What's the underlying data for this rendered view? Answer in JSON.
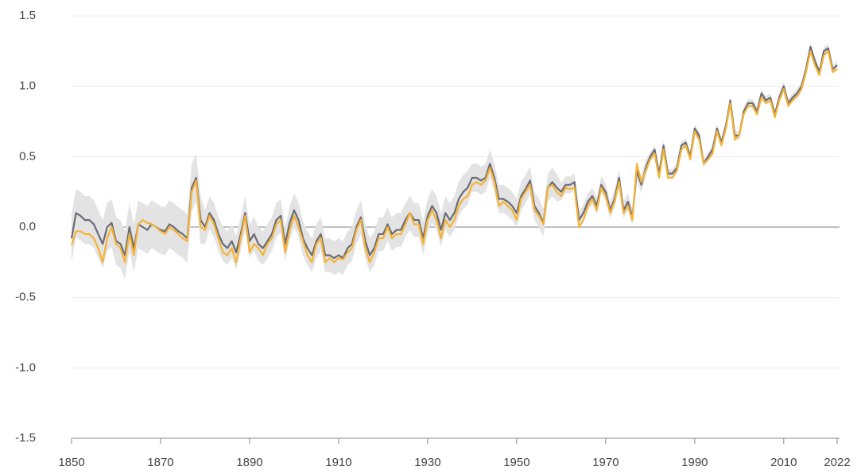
{
  "chart_data": {
    "type": "line",
    "x": [
      1850,
      1851,
      1852,
      1853,
      1854,
      1855,
      1856,
      1857,
      1858,
      1859,
      1860,
      1861,
      1862,
      1863,
      1864,
      1865,
      1866,
      1867,
      1868,
      1869,
      1870,
      1871,
      1872,
      1873,
      1874,
      1875,
      1876,
      1877,
      1878,
      1879,
      1880,
      1881,
      1882,
      1883,
      1884,
      1885,
      1886,
      1887,
      1888,
      1889,
      1890,
      1891,
      1892,
      1893,
      1894,
      1895,
      1896,
      1897,
      1898,
      1899,
      1900,
      1901,
      1902,
      1903,
      1904,
      1905,
      1906,
      1907,
      1908,
      1909,
      1910,
      1911,
      1912,
      1913,
      1914,
      1915,
      1916,
      1917,
      1918,
      1919,
      1920,
      1921,
      1922,
      1923,
      1924,
      1925,
      1926,
      1927,
      1928,
      1929,
      1930,
      1931,
      1932,
      1933,
      1934,
      1935,
      1936,
      1937,
      1938,
      1939,
      1940,
      1941,
      1942,
      1943,
      1944,
      1945,
      1946,
      1947,
      1948,
      1949,
      1950,
      1951,
      1952,
      1953,
      1954,
      1955,
      1956,
      1957,
      1958,
      1959,
      1960,
      1961,
      1962,
      1963,
      1964,
      1965,
      1966,
      1967,
      1968,
      1969,
      1970,
      1971,
      1972,
      1973,
      1974,
      1975,
      1976,
      1977,
      1978,
      1979,
      1980,
      1981,
      1982,
      1983,
      1984,
      1985,
      1986,
      1987,
      1988,
      1989,
      1990,
      1991,
      1992,
      1993,
      1994,
      1995,
      1996,
      1997,
      1998,
      1999,
      2000,
      2001,
      2002,
      2003,
      2004,
      2005,
      2006,
      2007,
      2008,
      2009,
      2010,
      2011,
      2012,
      2013,
      2014,
      2015,
      2016,
      2017,
      2018,
      2019,
      2020,
      2021,
      2022
    ],
    "series": [
      {
        "color": "#6b6b76",
        "band_color": "#e3e3e3",
        "values": [
          -0.08,
          0.1,
          0.08,
          0.05,
          0.05,
          0.02,
          -0.05,
          -0.12,
          0.0,
          0.03,
          -0.1,
          -0.12,
          -0.2,
          0.0,
          -0.15,
          0.02,
          0.0,
          -0.02,
          0.02,
          0.0,
          -0.02,
          -0.03,
          0.02,
          0.0,
          -0.03,
          -0.05,
          -0.08,
          0.28,
          0.35,
          0.05,
          0.0,
          0.1,
          0.05,
          -0.05,
          -0.12,
          -0.15,
          -0.1,
          -0.18,
          -0.05,
          0.1,
          -0.1,
          -0.05,
          -0.12,
          -0.15,
          -0.1,
          -0.05,
          0.05,
          0.08,
          -0.12,
          0.03,
          0.12,
          0.05,
          -0.08,
          -0.15,
          -0.2,
          -0.1,
          -0.05,
          -0.2,
          -0.2,
          -0.22,
          -0.2,
          -0.22,
          -0.15,
          -0.12,
          0.0,
          0.07,
          -0.1,
          -0.2,
          -0.15,
          -0.05,
          -0.05,
          0.02,
          -0.05,
          -0.02,
          -0.02,
          0.05,
          0.1,
          0.05,
          0.05,
          -0.08,
          0.08,
          0.15,
          0.1,
          -0.02,
          0.1,
          0.05,
          0.1,
          0.2,
          0.25,
          0.28,
          0.35,
          0.35,
          0.33,
          0.35,
          0.45,
          0.35,
          0.2,
          0.2,
          0.18,
          0.15,
          0.1,
          0.22,
          0.27,
          0.33,
          0.15,
          0.1,
          0.03,
          0.28,
          0.32,
          0.28,
          0.25,
          0.3,
          0.3,
          0.32,
          0.05,
          0.1,
          0.18,
          0.22,
          0.15,
          0.3,
          0.25,
          0.12,
          0.2,
          0.35,
          0.12,
          0.18,
          0.07,
          0.4,
          0.3,
          0.42,
          0.5,
          0.55,
          0.38,
          0.58,
          0.38,
          0.38,
          0.42,
          0.58,
          0.6,
          0.5,
          0.7,
          0.65,
          0.45,
          0.5,
          0.55,
          0.7,
          0.6,
          0.72,
          0.9,
          0.65,
          0.65,
          0.82,
          0.88,
          0.88,
          0.82,
          0.95,
          0.9,
          0.92,
          0.8,
          0.92,
          1.0,
          0.88,
          0.92,
          0.95,
          1.0,
          1.12,
          1.28,
          1.18,
          1.1,
          1.25,
          1.27,
          1.12,
          1.15
        ],
        "uncertainty": [
          0.17,
          0.17,
          0.17,
          0.17,
          0.17,
          0.17,
          0.17,
          0.17,
          0.17,
          0.17,
          0.17,
          0.17,
          0.17,
          0.17,
          0.17,
          0.17,
          0.17,
          0.17,
          0.17,
          0.17,
          0.17,
          0.17,
          0.17,
          0.17,
          0.17,
          0.17,
          0.17,
          0.17,
          0.17,
          0.17,
          0.12,
          0.12,
          0.12,
          0.12,
          0.12,
          0.12,
          0.12,
          0.12,
          0.12,
          0.12,
          0.12,
          0.12,
          0.12,
          0.12,
          0.12,
          0.12,
          0.12,
          0.12,
          0.12,
          0.12,
          0.12,
          0.12,
          0.12,
          0.12,
          0.12,
          0.12,
          0.12,
          0.12,
          0.12,
          0.12,
          0.12,
          0.12,
          0.12,
          0.12,
          0.12,
          0.12,
          0.12,
          0.12,
          0.12,
          0.12,
          0.12,
          0.12,
          0.12,
          0.12,
          0.12,
          0.12,
          0.12,
          0.12,
          0.12,
          0.12,
          0.12,
          0.12,
          0.12,
          0.12,
          0.12,
          0.12,
          0.12,
          0.12,
          0.12,
          0.12,
          0.1,
          0.1,
          0.1,
          0.1,
          0.1,
          0.1,
          0.1,
          0.1,
          0.1,
          0.1,
          0.1,
          0.1,
          0.1,
          0.1,
          0.1,
          0.1,
          0.1,
          0.1,
          0.1,
          0.1,
          0.06,
          0.06,
          0.06,
          0.06,
          0.06,
          0.06,
          0.06,
          0.06,
          0.06,
          0.06,
          0.06,
          0.06,
          0.06,
          0.06,
          0.06,
          0.06,
          0.06,
          0.06,
          0.06,
          0.06,
          0.03,
          0.03,
          0.03,
          0.03,
          0.03,
          0.03,
          0.03,
          0.03,
          0.03,
          0.03,
          0.03,
          0.03,
          0.03,
          0.03,
          0.03,
          0.03,
          0.03,
          0.03,
          0.03,
          0.03,
          0.03,
          0.03,
          0.03,
          0.03,
          0.03,
          0.03,
          0.03,
          0.03,
          0.03,
          0.03,
          0.03,
          0.03,
          0.03,
          0.03,
          0.03,
          0.03,
          0.03,
          0.03,
          0.03,
          0.03,
          0.03,
          0.03,
          0.03
        ]
      },
      {
        "color": "#f5b335",
        "values": [
          -0.13,
          -0.03,
          -0.03,
          -0.05,
          -0.05,
          -0.08,
          -0.15,
          -0.25,
          -0.08,
          0.0,
          -0.12,
          -0.15,
          -0.25,
          -0.05,
          -0.2,
          0.02,
          0.05,
          0.03,
          0.02,
          0.0,
          -0.03,
          -0.05,
          0.0,
          -0.02,
          -0.05,
          -0.08,
          -0.1,
          0.25,
          0.33,
          0.0,
          -0.02,
          0.08,
          0.02,
          -0.08,
          -0.18,
          -0.2,
          -0.15,
          -0.25,
          -0.08,
          0.08,
          -0.18,
          -0.12,
          -0.15,
          -0.2,
          -0.12,
          -0.08,
          0.02,
          0.05,
          -0.18,
          -0.02,
          0.08,
          0.0,
          -0.1,
          -0.2,
          -0.25,
          -0.12,
          -0.08,
          -0.25,
          -0.22,
          -0.25,
          -0.22,
          -0.23,
          -0.18,
          -0.15,
          -0.02,
          0.05,
          -0.15,
          -0.25,
          -0.18,
          -0.08,
          -0.08,
          0.0,
          -0.08,
          -0.05,
          -0.05,
          0.02,
          0.1,
          0.02,
          0.02,
          -0.12,
          0.05,
          0.12,
          0.05,
          -0.08,
          0.05,
          0.0,
          0.05,
          0.15,
          0.2,
          0.22,
          0.3,
          0.32,
          0.3,
          0.33,
          0.42,
          0.32,
          0.15,
          0.18,
          0.15,
          0.12,
          0.05,
          0.2,
          0.25,
          0.3,
          0.12,
          0.08,
          0.02,
          0.28,
          0.3,
          0.25,
          0.22,
          0.28,
          0.27,
          0.28,
          0.0,
          0.05,
          0.15,
          0.2,
          0.12,
          0.28,
          0.22,
          0.1,
          0.18,
          0.32,
          0.1,
          0.15,
          0.05,
          0.45,
          0.32,
          0.4,
          0.48,
          0.52,
          0.35,
          0.55,
          0.35,
          0.35,
          0.4,
          0.55,
          0.58,
          0.48,
          0.68,
          0.62,
          0.45,
          0.48,
          0.52,
          0.68,
          0.58,
          0.7,
          0.88,
          0.62,
          0.65,
          0.8,
          0.86,
          0.86,
          0.8,
          0.92,
          0.88,
          0.9,
          0.78,
          0.9,
          0.98,
          0.86,
          0.9,
          0.93,
          0.98,
          1.1,
          1.25,
          1.15,
          1.08,
          1.22,
          1.25,
          1.1,
          1.12
        ]
      }
    ],
    "xlim": [
      1850,
      2022
    ],
    "xticks": [
      1850,
      1870,
      1890,
      1910,
      1930,
      1950,
      1970,
      1990,
      2010,
      2022
    ],
    "ylim": [
      -1.5,
      1.5
    ],
    "yticks": [
      -1.5,
      {
        "value": -1,
        "label": "-1.0"
      },
      -0.5,
      {
        "value": 0,
        "label": "0.0"
      },
      0.5,
      {
        "value": 1,
        "label": "1.0"
      },
      1.5
    ],
    "grid": true
  }
}
